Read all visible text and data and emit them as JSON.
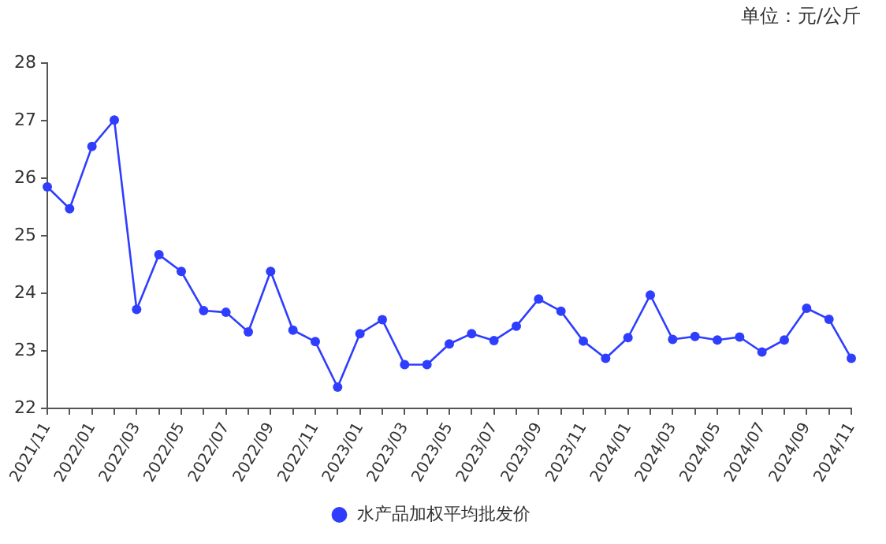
{
  "chart_data": {
    "type": "line",
    "annotations": [
      "单位：元/公斤"
    ],
    "categories": [
      "2021/11",
      null,
      "2022/01",
      null,
      "2022/03",
      null,
      "2022/05",
      null,
      "2022/07",
      null,
      "2022/09",
      null,
      "2022/11",
      null,
      "2023/01",
      null,
      "2023/03",
      null,
      "2023/05",
      null,
      "2023/07",
      null,
      "2023/09",
      null,
      "2023/11",
      null,
      "2024/01",
      null,
      "2024/03",
      null,
      "2024/05",
      null,
      "2024/07",
      null,
      "2024/09",
      null,
      "2024/11"
    ],
    "series": [
      {
        "name": "水产品加权平均批发价",
        "color": "#2f3dff",
        "values": [
          25.85,
          25.47,
          26.55,
          27.01,
          23.72,
          24.67,
          24.38,
          23.7,
          23.67,
          23.33,
          24.38,
          23.36,
          23.16,
          22.37,
          23.3,
          23.54,
          22.76,
          22.76,
          23.12,
          23.3,
          23.18,
          23.43,
          23.9,
          23.69,
          23.17,
          22.87,
          23.23,
          23.97,
          23.2,
          23.25,
          23.19,
          23.24,
          22.98,
          23.19,
          23.74,
          23.55,
          22.87
        ]
      }
    ],
    "ylim": [
      22,
      28
    ],
    "yticks": [
      22,
      23,
      24,
      25,
      26,
      27,
      28
    ],
    "grid": false,
    "legend": "bottom",
    "marker": "circle",
    "line_style": "solid"
  }
}
